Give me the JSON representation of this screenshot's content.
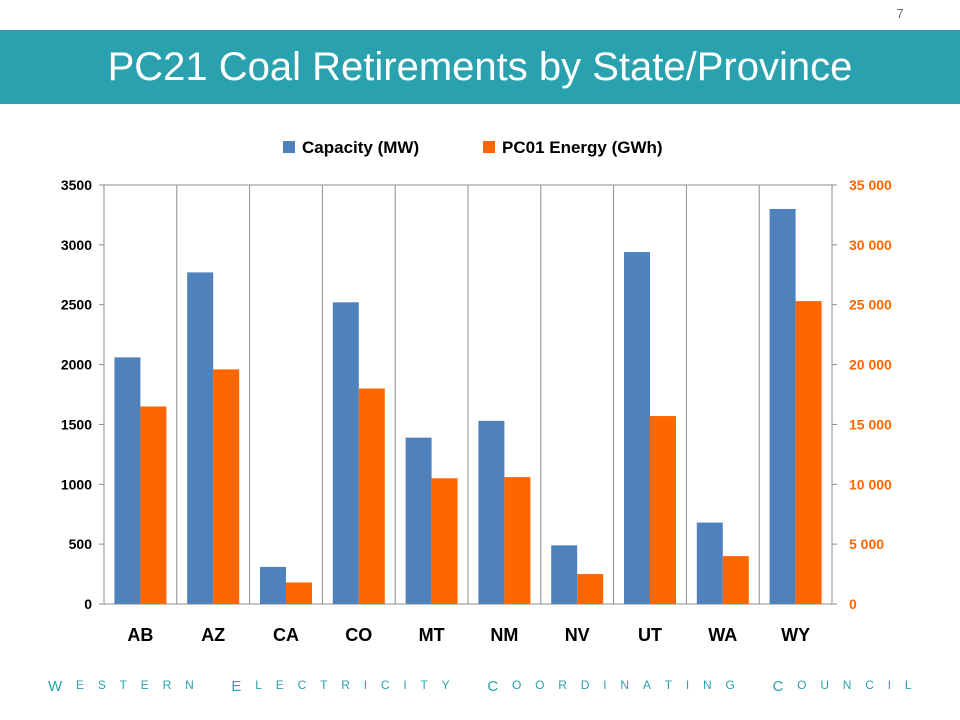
{
  "page_number": "7",
  "title": "PC21 Coal Retirements by State/Province",
  "footer_text": "Western Electricity Coordinating Council",
  "colors": {
    "title_bar": "#2aa1ae",
    "capacity": "#4f81bd",
    "energy": "#ff6600",
    "right_axis_text": "#ff6600",
    "footer": "#2aa1ae"
  },
  "chart_data": {
    "type": "bar",
    "categories": [
      "AB",
      "AZ",
      "CA",
      "CO",
      "MT",
      "NM",
      "NV",
      "UT",
      "WA",
      "WY"
    ],
    "series": [
      {
        "name": "Capacity (MW)",
        "axis": "left",
        "color": "#4f81bd",
        "values": [
          2060,
          2770,
          310,
          2520,
          1390,
          1530,
          490,
          2940,
          680,
          3300
        ]
      },
      {
        "name": "PC01 Energy (GWh)",
        "axis": "right",
        "color": "#ff6600",
        "values": [
          16500,
          19600,
          1800,
          18000,
          10500,
          10600,
          2500,
          15700,
          4000,
          25300
        ]
      }
    ],
    "ylim": [
      0,
      3500
    ],
    "y2lim": [
      0,
      35000
    ],
    "yticks": [
      "0",
      "500",
      "1000",
      "1500",
      "2000",
      "2500",
      "3000",
      "3500"
    ],
    "y2ticks": [
      "0",
      "5 000",
      "10 000",
      "15 000",
      "20 000",
      "25 000",
      "30 000",
      "35 000"
    ],
    "legend_position": "top",
    "grid": "vertical category separators"
  }
}
